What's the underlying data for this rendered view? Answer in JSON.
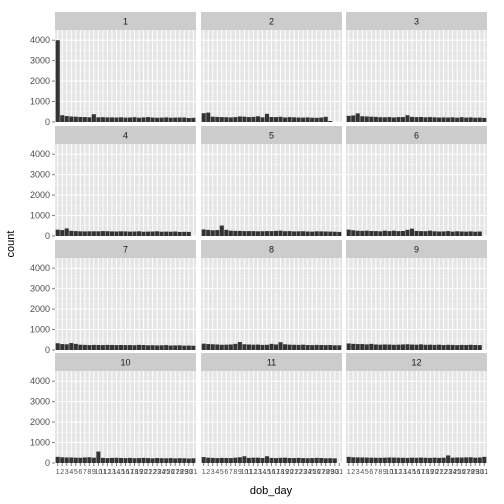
{
  "chart_data": {
    "type": "bar",
    "facet_by": "dob_month",
    "xlabel": "dob_day",
    "ylabel": "count",
    "ylim": [
      0,
      4500
    ],
    "yticks": [
      0,
      1000,
      2000,
      3000,
      4000
    ],
    "xticks": [
      "1",
      "2",
      "3",
      "4",
      "5",
      "6",
      "7",
      "8",
      "9",
      "10",
      "11",
      "12",
      "13",
      "14",
      "15",
      "16",
      "17",
      "18",
      "19",
      "20",
      "21",
      "22",
      "23",
      "24",
      "25",
      "26",
      "27",
      "28",
      "29",
      "30",
      "31"
    ],
    "colors": {
      "panel_bg": "#e5e5e5",
      "grid": "#ffffff",
      "bar": "#333333",
      "strip_bg": "#cccccc",
      "tick": "#7f7f7f"
    },
    "facets": [
      {
        "label": "1",
        "values": [
          4000,
          330,
          290,
          270,
          260,
          245,
          240,
          230,
          380,
          230,
          235,
          225,
          225,
          220,
          230,
          215,
          220,
          235,
          210,
          225,
          240,
          220,
          210,
          215,
          225,
          210,
          215,
          220,
          220,
          195,
          205
        ]
      },
      {
        "label": "2",
        "values": [
          430,
          460,
          260,
          250,
          240,
          235,
          225,
          240,
          270,
          260,
          240,
          250,
          280,
          230,
          400,
          245,
          240,
          255,
          220,
          240,
          230,
          220,
          215,
          225,
          210,
          205,
          220,
          255,
          50,
          0,
          0
        ]
      },
      {
        "label": "3",
        "values": [
          300,
          320,
          420,
          280,
          270,
          260,
          250,
          235,
          230,
          240,
          225,
          240,
          240,
          330,
          250,
          240,
          245,
          230,
          240,
          230,
          220,
          225,
          220,
          230,
          210,
          235,
          215,
          225,
          210,
          215,
          200
        ]
      },
      {
        "label": "4",
        "values": [
          310,
          290,
          370,
          250,
          240,
          230,
          225,
          230,
          230,
          230,
          240,
          235,
          225,
          220,
          230,
          225,
          215,
          220,
          230,
          210,
          215,
          220,
          230,
          210,
          215,
          210,
          220,
          200,
          205,
          200,
          0
        ]
      },
      {
        "label": "5",
        "values": [
          320,
          300,
          280,
          290,
          510,
          300,
          260,
          250,
          250,
          240,
          240,
          240,
          230,
          235,
          240,
          240,
          250,
          260,
          235,
          240,
          225,
          230,
          235,
          220,
          215,
          230,
          225,
          220,
          215,
          210,
          200
        ]
      },
      {
        "label": "6",
        "values": [
          310,
          280,
          255,
          250,
          260,
          245,
          240,
          230,
          260,
          240,
          260,
          240,
          245,
          300,
          360,
          250,
          240,
          235,
          260,
          230,
          220,
          225,
          240,
          215,
          230,
          220,
          215,
          225,
          210,
          220,
          0
        ]
      },
      {
        "label": "7",
        "values": [
          330,
          290,
          280,
          340,
          300,
          260,
          250,
          240,
          250,
          245,
          240,
          250,
          245,
          240,
          245,
          240,
          240,
          235,
          250,
          245,
          230,
          235,
          225,
          230,
          240,
          220,
          225,
          230,
          215,
          220,
          210
        ]
      },
      {
        "label": "8",
        "values": [
          310,
          290,
          280,
          270,
          255,
          260,
          270,
          300,
          390,
          280,
          270,
          260,
          265,
          250,
          255,
          300,
          270,
          380,
          280,
          260,
          255,
          250,
          260,
          245,
          240,
          250,
          245,
          240,
          245,
          230,
          230
        ]
      },
      {
        "label": "9",
        "values": [
          320,
          300,
          290,
          290,
          275,
          300,
          270,
          260,
          270,
          265,
          255,
          260,
          270,
          280,
          265,
          260,
          275,
          255,
          260,
          250,
          260,
          245,
          255,
          250,
          240,
          250,
          245,
          255,
          245,
          240,
          0
        ]
      },
      {
        "label": "10",
        "values": [
          300,
          280,
          270,
          270,
          260,
          255,
          270,
          280,
          260,
          560,
          250,
          240,
          250,
          255,
          245,
          240,
          250,
          235,
          240,
          250,
          240,
          230,
          245,
          235,
          230,
          240,
          225,
          235,
          230,
          220,
          230
        ]
      },
      {
        "label": "11",
        "values": [
          290,
          260,
          250,
          240,
          250,
          245,
          240,
          260,
          280,
          330,
          250,
          260,
          260,
          245,
          330,
          250,
          240,
          255,
          260,
          245,
          240,
          250,
          240,
          235,
          240,
          250,
          245,
          230,
          235,
          225,
          0
        ]
      },
      {
        "label": "12",
        "values": [
          300,
          280,
          275,
          270,
          265,
          260,
          255,
          255,
          260,
          270,
          265,
          260,
          255,
          250,
          260,
          255,
          265,
          255,
          250,
          260,
          250,
          260,
          370,
          260,
          270,
          265,
          275,
          280,
          260,
          270,
          300
        ]
      }
    ]
  }
}
